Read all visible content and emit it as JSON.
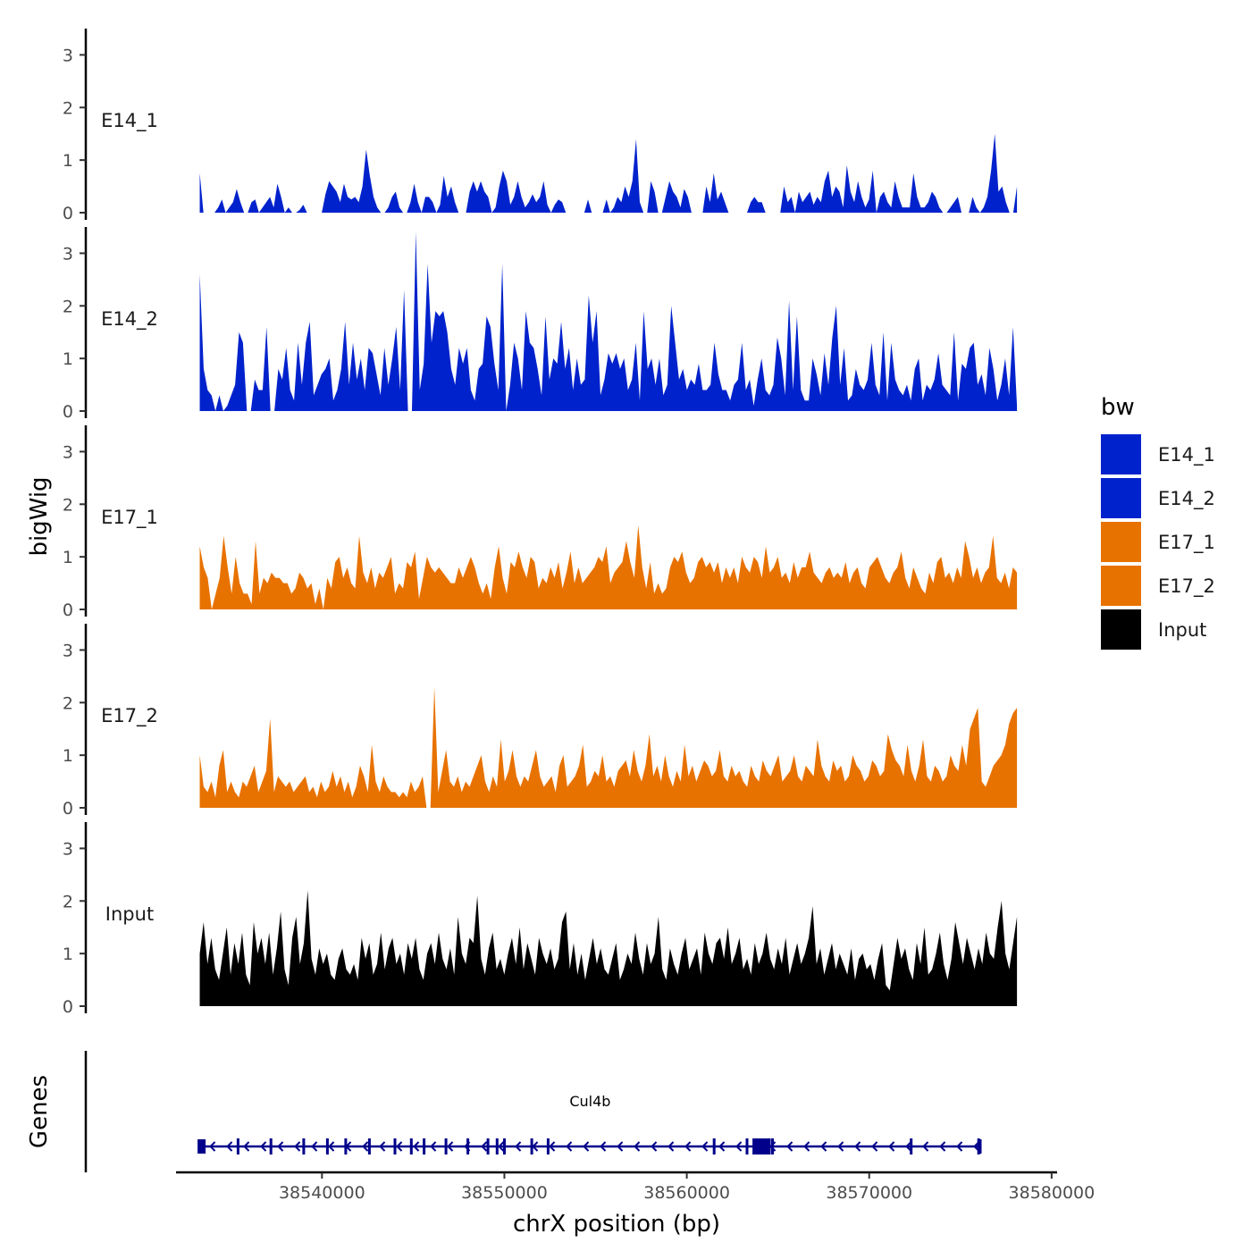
{
  "chart_data": {
    "type": "area",
    "chromosome": "chrX",
    "xlabel": "chrX position (bp)",
    "ylabel": "bigWig",
    "ylim": [
      0,
      3.5
    ],
    "yticks": [
      "0",
      "1",
      "2",
      "3"
    ],
    "xlim": [
      38532000,
      38580300
    ],
    "xticks": [
      38540000,
      38550000,
      38560000,
      38570000,
      38580000
    ],
    "xtick_labels": [
      "38540000",
      "38550000",
      "38560000",
      "38570000",
      "38580000"
    ],
    "x_start": 38533300,
    "x_end": 38578100,
    "legend": {
      "title": "bw",
      "position": "right",
      "entries": [
        {
          "label": "E14_1",
          "color": "#0022cc"
        },
        {
          "label": "E14_2",
          "color": "#0022cc"
        },
        {
          "label": "E17_1",
          "color": "#e87200"
        },
        {
          "label": "E17_2",
          "color": "#e87200"
        },
        {
          "label": "Input",
          "color": "#000000"
        }
      ]
    },
    "series": [
      {
        "name": "E14_1",
        "color": "#0022cc",
        "values": [
          0.75,
          0,
          0,
          0,
          0,
          0.1,
          0.25,
          0,
          0.1,
          0.2,
          0.45,
          0.2,
          0,
          0,
          0.2,
          0.25,
          0,
          0.1,
          0.2,
          0.3,
          0.1,
          0.55,
          0.3,
          0,
          0.1,
          0,
          0,
          0.05,
          0.15,
          0,
          0,
          0,
          0,
          0,
          0.35,
          0.6,
          0.5,
          0.4,
          0.2,
          0.55,
          0.3,
          0.25,
          0.3,
          0.2,
          0.5,
          1.2,
          0.7,
          0.3,
          0.1,
          0,
          0,
          0.1,
          0.3,
          0.4,
          0.1,
          0,
          0,
          0.2,
          0.55,
          0.2,
          0,
          0.3,
          0.3,
          0.2,
          0,
          0.15,
          0.7,
          0.3,
          0.5,
          0.2,
          0,
          0,
          0,
          0.4,
          0.6,
          0.4,
          0.6,
          0.4,
          0.3,
          0,
          0.1,
          0.5,
          0.8,
          0.6,
          0.15,
          0.3,
          0.6,
          0.3,
          0.1,
          0.2,
          0.35,
          0.2,
          0.3,
          0.6,
          0.15,
          0,
          0.15,
          0.25,
          0.2,
          0,
          0,
          0,
          0,
          0,
          0,
          0.25,
          0,
          0,
          0,
          0,
          0.25,
          0,
          0.1,
          0.3,
          0.2,
          0.5,
          0.3,
          0.6,
          1.4,
          0.2,
          0,
          0,
          0.6,
          0.4,
          0,
          0,
          0.3,
          0.6,
          0.4,
          0.3,
          0.1,
          0.45,
          0.3,
          0,
          0,
          0,
          0,
          0.5,
          0.2,
          0.75,
          0.25,
          0.4,
          0.2,
          0,
          0,
          0,
          0,
          0,
          0,
          0.2,
          0.3,
          0.2,
          0.2,
          0,
          0,
          0,
          0,
          0,
          0.5,
          0.2,
          0.3,
          0,
          0.4,
          0.2,
          0.3,
          0.4,
          0.15,
          0.3,
          0.2,
          0.6,
          0.8,
          0.3,
          0.5,
          0.4,
          0.1,
          0.9,
          0.4,
          0.2,
          0.6,
          0.3,
          0.1,
          0.25,
          0.8,
          0,
          0.3,
          0.4,
          0.2,
          0.1,
          0.6,
          0.3,
          0.1,
          0.1,
          0.1,
          0.75,
          0.3,
          0.1,
          0.1,
          0.2,
          0.4,
          0.3,
          0.1,
          0,
          0,
          0.1,
          0.2,
          0.3,
          0,
          0,
          0,
          0.3,
          0.1,
          0,
          0.1,
          0.3,
          0.8,
          1.5,
          0.4,
          0.5,
          0.2,
          0,
          0,
          0.5
        ]
      },
      {
        "name": "E14_2",
        "color": "#0022cc",
        "values": [
          2.6,
          0.8,
          0.4,
          0.3,
          0,
          0.3,
          0,
          0.1,
          0.3,
          0.5,
          1.5,
          1.3,
          0,
          0,
          0.6,
          0.4,
          0.4,
          1.6,
          0,
          0,
          0.8,
          0.6,
          1.2,
          0.4,
          0.2,
          1.3,
          0.5,
          1.3,
          1.7,
          0.3,
          0.5,
          0.7,
          0.8,
          1,
          0.2,
          0.4,
          0.8,
          1.7,
          0.5,
          1.3,
          0.6,
          1.0,
          0.4,
          1.2,
          1.1,
          0.7,
          0.3,
          1.2,
          0.5,
          1.0,
          1.6,
          0.4,
          2.3,
          0,
          0,
          3.4,
          0.4,
          0.9,
          2.8,
          1.3,
          1.9,
          1.8,
          1.9,
          1.5,
          0.8,
          0.5,
          1.2,
          0.9,
          1.2,
          0.4,
          0.2,
          0.8,
          0.9,
          1.8,
          1.6,
          0.9,
          0.4,
          2.8,
          0,
          0.5,
          1.3,
          1.0,
          0.4,
          1.9,
          1.3,
          1.2,
          0.8,
          0.3,
          1.8,
          0.6,
          1.0,
          0.9,
          1.7,
          0.8,
          1.2,
          0.4,
          1.0,
          0.5,
          0.6,
          2.2,
          1.3,
          1.9,
          0.3,
          0.6,
          1.1,
          0.9,
          1.1,
          0.8,
          1.0,
          0.4,
          0.6,
          1.3,
          0.2,
          1.9,
          0.8,
          1.0,
          0.5,
          1.0,
          0.3,
          0.5,
          2.0,
          1.3,
          0.6,
          0.8,
          0.4,
          0.6,
          0.5,
          0.9,
          0.4,
          0.4,
          0.5,
          1.3,
          0.7,
          0.4,
          0.4,
          0.2,
          0.5,
          0.6,
          1.3,
          0.4,
          0.6,
          0.1,
          0.6,
          1.0,
          0.4,
          0.3,
          0.5,
          1.4,
          1.0,
          0.3,
          2.1,
          0.4,
          1.8,
          0.4,
          0.2,
          0.2,
          1.0,
          0.7,
          0.3,
          1.1,
          0.5,
          1.4,
          2.0,
          0.5,
          1.2,
          0.2,
          0.3,
          0.8,
          0.5,
          0.4,
          0.6,
          1.3,
          0.5,
          0.3,
          1.5,
          0.2,
          1.3,
          0.6,
          0.4,
          0.3,
          0.5,
          0.2,
          0.8,
          1.0,
          0.2,
          0.5,
          0.4,
          0.6,
          1.1,
          0.5,
          0.4,
          0.3,
          1.5,
          0.2,
          0.9,
          0.8,
          1.2,
          1.3,
          0.5,
          0.7,
          0.3,
          1.2,
          0.8,
          0.2,
          0.5,
          1.0,
          0.3,
          1.6,
          0.1
        ]
      },
      {
        "name": "E17_1",
        "color": "#e87200",
        "values": [
          1.2,
          0.8,
          0.6,
          0,
          0.3,
          0.6,
          1.4,
          0.8,
          0.3,
          1.0,
          0.5,
          0.3,
          0.3,
          0.1,
          1.3,
          0.3,
          0.6,
          0.5,
          0.7,
          0.6,
          0.6,
          0.5,
          0.5,
          0.3,
          0.4,
          0.7,
          0.6,
          0.4,
          0.5,
          0.1,
          0.4,
          0,
          0.6,
          0.4,
          0.9,
          1.0,
          0.6,
          0.8,
          0.5,
          0.4,
          1.4,
          0.7,
          0.5,
          0.8,
          0.4,
          0.7,
          0.6,
          0.8,
          1.0,
          0.3,
          0.5,
          0.4,
          0.9,
          0.8,
          1.1,
          0.2,
          0.6,
          1.0,
          0.8,
          0.7,
          0.8,
          0.7,
          0.6,
          0.5,
          0.5,
          0.8,
          0.6,
          0.8,
          1.0,
          0.8,
          0.5,
          0.3,
          0.5,
          0.2,
          0.8,
          1.2,
          0.6,
          0.3,
          0.9,
          0.8,
          1.1,
          0.8,
          0.6,
          1.0,
          0.9,
          0.4,
          0.6,
          0.5,
          0.8,
          0.6,
          0.9,
          0.4,
          0.7,
          1.1,
          0.5,
          0.8,
          0.5,
          0.6,
          0.7,
          0.8,
          1.0,
          0.9,
          1.2,
          0.5,
          0.7,
          0.8,
          0.9,
          1.3,
          0.9,
          0.6,
          1.6,
          0.8,
          0.4,
          0.9,
          0.3,
          0.5,
          0.3,
          0.4,
          0.8,
          1.0,
          0.9,
          1.1,
          0.7,
          0.5,
          0.6,
          0.9,
          1.0,
          0.8,
          0.9,
          0.7,
          0.9,
          0.5,
          0.8,
          0.6,
          0.8,
          0.5,
          1.0,
          0.8,
          0.7,
          1.0,
          0.9,
          0.6,
          1.2,
          0.7,
          0.8,
          1.0,
          0.6,
          0.7,
          0.5,
          0.9,
          0.6,
          0.8,
          0.8,
          1.1,
          0.7,
          0.6,
          0.5,
          0.7,
          0.8,
          0.6,
          0.7,
          0.6,
          0.9,
          0.5,
          0.7,
          0.8,
          0.5,
          0.4,
          0.8,
          0.9,
          1.0,
          0.8,
          0.6,
          0.5,
          0.7,
          0.8,
          1.1,
          0.6,
          0.4,
          0.8,
          0.6,
          0.4,
          0.3,
          0.7,
          0.5,
          0.9,
          1.0,
          0.6,
          0.7,
          0.5,
          0.8,
          0.6,
          1.3,
          1.0,
          0.6,
          0.8,
          0.5,
          0.7,
          0.8,
          1.4,
          0.6,
          0.5,
          0.7,
          0.4,
          0.8,
          0.7
        ]
      },
      {
        "name": "E17_2",
        "color": "#e87200",
        "values": [
          1.0,
          0.4,
          0.3,
          0.5,
          0.2,
          0.8,
          1.1,
          0.3,
          0.5,
          0.3,
          0.2,
          0.5,
          0.4,
          0.6,
          0.8,
          0.3,
          0.5,
          0.7,
          1.7,
          0.3,
          0.6,
          0.5,
          0.4,
          0.5,
          0.3,
          0.4,
          0.5,
          0.6,
          0.3,
          0.4,
          0.2,
          0.5,
          0.3,
          0.4,
          0.7,
          0.4,
          0.6,
          0.3,
          0.5,
          0.2,
          0.4,
          0.8,
          0.6,
          0.3,
          1.2,
          0.5,
          0.3,
          0.6,
          0.4,
          0.3,
          0.3,
          0.2,
          0.3,
          0.2,
          0.5,
          0.3,
          0.4,
          0.6,
          0,
          0,
          2.3,
          0.3,
          0.7,
          1.1,
          0.5,
          0.4,
          0.6,
          0.3,
          0.5,
          0.4,
          0.6,
          0.8,
          1.0,
          0.5,
          0.3,
          0.6,
          0.4,
          1.3,
          0.5,
          0.7,
          1.1,
          0.6,
          0.4,
          0.6,
          0.5,
          0.8,
          1.1,
          0.6,
          0.4,
          0.5,
          0.6,
          0.3,
          0.8,
          1.0,
          0.4,
          0.5,
          0.6,
          0.8,
          1.2,
          0.4,
          0.5,
          0.7,
          0.6,
          1.0,
          0.5,
          0.6,
          0.4,
          0.7,
          0.8,
          0.9,
          0.6,
          1.1,
          0.7,
          0.5,
          0.8,
          1.4,
          0.6,
          0.8,
          0.5,
          1.0,
          0.6,
          0.4,
          0.7,
          0.5,
          1.2,
          0.6,
          0.8,
          0.5,
          0.7,
          0.9,
          0.8,
          0.6,
          0.7,
          1.1,
          0.6,
          0.5,
          0.8,
          0.6,
          0.7,
          0.5,
          0.4,
          0.8,
          0.6,
          0.5,
          0.9,
          0.7,
          0.6,
          0.8,
          1.0,
          0.5,
          0.6,
          0.7,
          1.0,
          0.6,
          0.5,
          0.8,
          0.7,
          0.6,
          1.3,
          0.8,
          0.6,
          0.5,
          0.9,
          0.7,
          0.8,
          0.5,
          0.6,
          1.0,
          0.8,
          0.7,
          0.5,
          0.6,
          0.9,
          0.8,
          0.6,
          0.7,
          1.4,
          1.1,
          0.9,
          0.8,
          0.6,
          1.2,
          0.7,
          0.5,
          0.8,
          1.3,
          0.6,
          0.5,
          0.8,
          0.7,
          0.5,
          0.6,
          1.0,
          0.8,
          0.7,
          1.2,
          0.8,
          1.5,
          1.7,
          1.9,
          0.5,
          0.4,
          0.6,
          0.8,
          0.9,
          1.0,
          1.2,
          1.6,
          1.8,
          1.9
        ]
      },
      {
        "name": "Input",
        "color": "#000000",
        "values": [
          1.0,
          1.6,
          0.8,
          1.3,
          0.7,
          0.5,
          1.0,
          1.5,
          0.6,
          1.2,
          0.8,
          1.4,
          0.6,
          0.4,
          1.6,
          1.0,
          1.3,
          0.8,
          1.4,
          0.6,
          1.1,
          1.8,
          0.7,
          0.4,
          1.3,
          1.7,
          0.8,
          1.2,
          2.2,
          0.9,
          0.6,
          1.1,
          0.8,
          1.0,
          0.6,
          0.5,
          0.9,
          1.1,
          0.7,
          0.6,
          0.8,
          0.5,
          1.3,
          0.9,
          1.2,
          0.6,
          0.8,
          1.4,
          0.7,
          1.1,
          1.3,
          0.8,
          1.0,
          0.6,
          1.2,
          0.9,
          1.3,
          0.7,
          0.5,
          1.0,
          1.2,
          0.8,
          1.4,
          0.9,
          0.7,
          1.1,
          0.6,
          1.7,
          1.0,
          0.8,
          1.3,
          1.2,
          2.1,
          0.9,
          0.6,
          1.1,
          1.4,
          0.7,
          0.9,
          0.6,
          1.0,
          1.3,
          0.8,
          1.5,
          0.7,
          1.2,
          0.9,
          0.6,
          1.3,
          1.0,
          0.8,
          1.1,
          0.7,
          0.9,
          1.6,
          1.8,
          0.7,
          1.2,
          0.6,
          1.0,
          0.5,
          0.9,
          1.3,
          0.8,
          1.1,
          0.7,
          0.6,
          0.9,
          1.2,
          0.5,
          0.7,
          1.0,
          0.8,
          1.4,
          0.9,
          0.6,
          1.2,
          0.8,
          1.0,
          1.7,
          0.7,
          0.5,
          1.1,
          0.8,
          0.6,
          1.0,
          1.3,
          0.7,
          0.9,
          1.1,
          0.6,
          1.4,
          1.0,
          0.8,
          1.2,
          1.3,
          0.9,
          1.5,
          0.8,
          1.0,
          1.3,
          0.7,
          0.9,
          0.6,
          1.2,
          0.8,
          1.0,
          1.4,
          0.9,
          0.7,
          1.1,
          0.8,
          1.3,
          0.6,
          0.9,
          1.2,
          0.8,
          1.0,
          1.3,
          1.9,
          0.8,
          1.1,
          0.6,
          0.9,
          1.2,
          0.7,
          1.0,
          0.8,
          0.6,
          1.1,
          0.5,
          0.9,
          1.0,
          0.7,
          0.8,
          0.5,
          0.9,
          1.2,
          0.4,
          0.3,
          0.8,
          1.3,
          0.9,
          1.1,
          0.7,
          0.5,
          1.2,
          0.8,
          1.5,
          0.6,
          0.7,
          1.0,
          1.4,
          0.8,
          0.5,
          0.9,
          1.6,
          1.2,
          0.8,
          1.3,
          1.0,
          0.7,
          1.1,
          0.8,
          1.4,
          1.0,
          0.9,
          1.5,
          2.0,
          1.0,
          0.7,
          1.2,
          1.7
        ]
      }
    ],
    "gene_track": {
      "label": "Genes",
      "gene_name": "Cul4b",
      "strand": "-",
      "start": 38533300,
      "end": 38576100,
      "color": "#00008b",
      "exons": [
        38533400,
        38535400,
        38537200,
        38539000,
        38540300,
        38541300,
        38542600,
        38544000,
        38544900,
        38545600,
        38546800,
        38548000,
        38549100,
        38549600,
        38550000,
        38551500,
        38552400,
        38561500,
        38563300,
        38564100,
        38564700,
        38572300,
        38576000
      ]
    }
  }
}
